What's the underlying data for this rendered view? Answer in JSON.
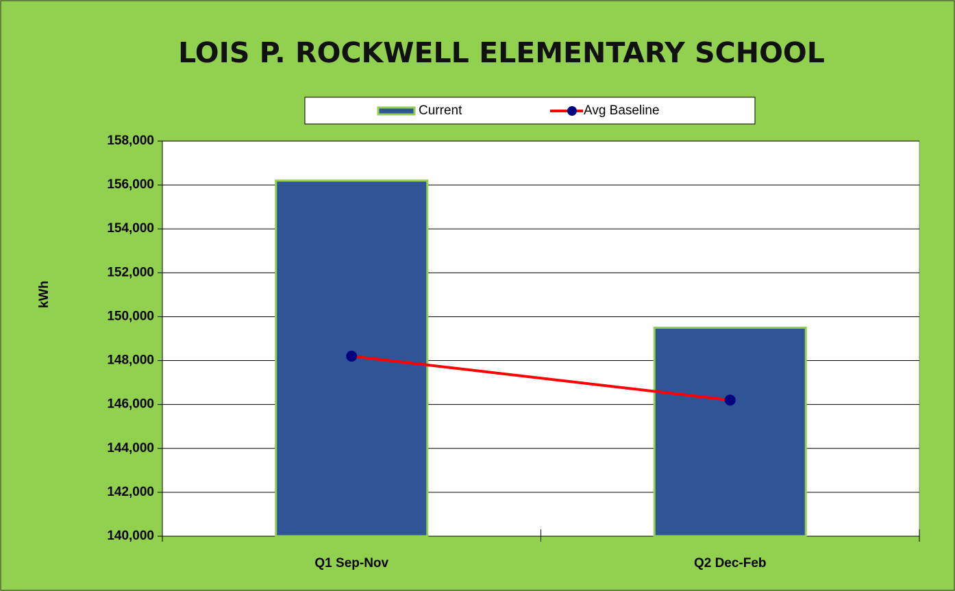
{
  "chart_data": {
    "type": "bar",
    "title": "LOIS P. ROCKWELL ELEMENTARY SCHOOL",
    "ylabel": "kWh",
    "categories": [
      "Q1 Sep-Nov",
      "Q2 Dec-Feb"
    ],
    "series": [
      {
        "name": "Current",
        "type": "bar",
        "color": "#2f5597",
        "values": [
          156200,
          149500
        ]
      },
      {
        "name": "Avg Baseline",
        "type": "line",
        "color": "#ff0000",
        "marker_color": "#000080",
        "values": [
          148200,
          146200
        ]
      }
    ],
    "ylim": [
      140000,
      158000
    ],
    "yticks": [
      {
        "value": 140000,
        "label": "140,000"
      },
      {
        "value": 142000,
        "label": "142,000"
      },
      {
        "value": 144000,
        "label": "144,000"
      },
      {
        "value": 146000,
        "label": "146,000"
      },
      {
        "value": 148000,
        "label": "148,000"
      },
      {
        "value": 150000,
        "label": "150,000"
      },
      {
        "value": 152000,
        "label": "152,000"
      },
      {
        "value": 154000,
        "label": "154,000"
      },
      {
        "value": 156000,
        "label": "156,000"
      },
      {
        "value": 158000,
        "label": "158,000"
      }
    ],
    "grid": true,
    "legend": "top"
  }
}
